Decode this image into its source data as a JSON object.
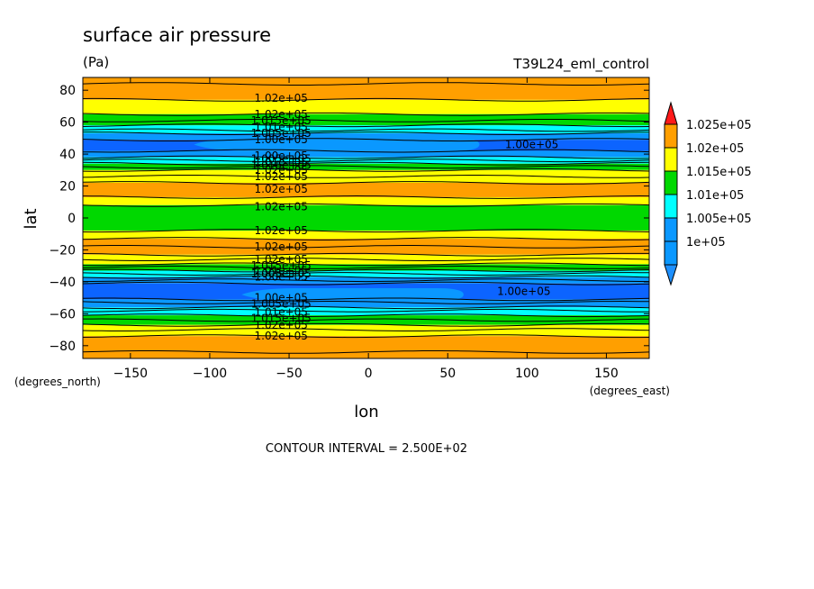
{
  "chart_data": {
    "type": "heatmap",
    "title": "surface air pressure",
    "units": "(Pa)",
    "run_label": "T39L24_eml_control",
    "xlabel": "lon",
    "ylabel": "lat",
    "x_unit": "(degrees_east)",
    "y_unit": "(degrees_north)",
    "xlim": [
      -180,
      177
    ],
    "ylim": [
      -88,
      88
    ],
    "x_ticks": [
      -150,
      -100,
      -50,
      0,
      50,
      100,
      150
    ],
    "y_ticks": [
      -80,
      -60,
      -40,
      -20,
      0,
      20,
      40,
      60,
      80
    ],
    "x_tick_labels": [
      "−150",
      "−100",
      "−50",
      "0",
      "50",
      "100",
      "150"
    ],
    "y_tick_labels": [
      "−80",
      "−60",
      "−40",
      "−20",
      "0",
      "20",
      "40",
      "60",
      "80"
    ],
    "contour_interval_text": "CONTOUR INTERVAL = 2.500E+02",
    "levels": [
      100000,
      100250,
      100500,
      100750,
      101000,
      101250,
      101500,
      101750,
      102000,
      102250,
      102500
    ],
    "legend": {
      "labels": [
        "1.025e+05",
        "1.02e+05",
        "1.015e+05",
        "1.01e+05",
        "1.005e+05",
        "1e+05"
      ],
      "colors": [
        "#ff9f00",
        "#ffff00",
        "#00d800",
        "#00ffff",
        "#0a98ff",
        "#0a98ff"
      ],
      "top_arrow_color": "#ff1a1a",
      "bottom_arrow_color": "#1e90ff"
    },
    "bands": [
      {
        "lat_min": 74,
        "lat_max": 88,
        "color": "#ff9f00"
      },
      {
        "lat_min": 65,
        "lat_max": 74,
        "color": "#ffff00"
      },
      {
        "lat_min": 58,
        "lat_max": 65,
        "color": "#00d800"
      },
      {
        "lat_min": 53,
        "lat_max": 58,
        "color": "#00ffff"
      },
      {
        "lat_min": 49,
        "lat_max": 53,
        "color": "#0a98ff"
      },
      {
        "lat_min": 42,
        "lat_max": 49,
        "color": "#0c64ff"
      },
      {
        "lat_min": 38,
        "lat_max": 42,
        "color": "#0a98ff"
      },
      {
        "lat_min": 34,
        "lat_max": 38,
        "color": "#00ffff"
      },
      {
        "lat_min": 30,
        "lat_max": 34,
        "color": "#00d800"
      },
      {
        "lat_min": 22,
        "lat_max": 30,
        "color": "#ffff00"
      },
      {
        "lat_min": 13,
        "lat_max": 22,
        "color": "#ff9f00"
      },
      {
        "lat_min": 8,
        "lat_max": 13,
        "color": "#ffff00"
      },
      {
        "lat_min": -8,
        "lat_max": 8,
        "color": "#00d800"
      },
      {
        "lat_min": -13,
        "lat_max": -8,
        "color": "#ffff00"
      },
      {
        "lat_min": -23,
        "lat_max": -13,
        "color": "#ff9f00"
      },
      {
        "lat_min": -29,
        "lat_max": -23,
        "color": "#ffff00"
      },
      {
        "lat_min": -33,
        "lat_max": -29,
        "color": "#00d800"
      },
      {
        "lat_min": -37,
        "lat_max": -33,
        "color": "#00ffff"
      },
      {
        "lat_min": -41,
        "lat_max": -37,
        "color": "#0a98ff"
      },
      {
        "lat_min": -51,
        "lat_max": -41,
        "color": "#0c64ff"
      },
      {
        "lat_min": -56,
        "lat_max": -51,
        "color": "#0a98ff"
      },
      {
        "lat_min": -61,
        "lat_max": -56,
        "color": "#00ffff"
      },
      {
        "lat_min": -67,
        "lat_max": -61,
        "color": "#00d800"
      },
      {
        "lat_min": -74,
        "lat_max": -67,
        "color": "#ffff00"
      },
      {
        "lat_min": -88,
        "lat_max": -74,
        "color": "#ff9f00"
      }
    ],
    "patches": [
      {
        "lon": [
          -110,
          70
        ],
        "lat": [
          42,
          50
        ],
        "color": "#0a98ff"
      },
      {
        "lon": [
          -80,
          60
        ],
        "lat": [
          -52,
          -44
        ],
        "color": "#0a98ff"
      }
    ],
    "contour_lats": [
      84,
      74,
      65,
      61,
      58,
      55,
      53,
      49,
      42,
      38,
      36,
      34,
      32,
      30,
      26,
      22,
      13,
      8,
      -8,
      -13,
      -18,
      -23,
      -26,
      -29,
      -31,
      -33,
      -35,
      -37,
      -39,
      -41,
      -51,
      -53,
      -56,
      -58,
      -61,
      -64,
      -67,
      -70,
      -74,
      -84
    ],
    "contour_labels": [
      {
        "text": "1.02e+05",
        "lon": -55,
        "lat": 75
      },
      {
        "text": "1.02e+05",
        "lon": -55,
        "lat": 65
      },
      {
        "text": "1.015e+05",
        "lon": -55,
        "lat": 61
      },
      {
        "text": "1.01e+05",
        "lon": -55,
        "lat": 57
      },
      {
        "text": "1.005e+05",
        "lon": -55,
        "lat": 53
      },
      {
        "text": "1.00e+05",
        "lon": -55,
        "lat": 49
      },
      {
        "text": "1.00e+05",
        "lon": 103,
        "lat": 46
      },
      {
        "text": "1.00e+05",
        "lon": -55,
        "lat": 39
      },
      {
        "text": "1.005e+05",
        "lon": -55,
        "lat": 37
      },
      {
        "text": "1.01e+05",
        "lon": -55,
        "lat": 35
      },
      {
        "text": "1.015e+05",
        "lon": -55,
        "lat": 33
      },
      {
        "text": "1.02e+05",
        "lon": -55,
        "lat": 30
      },
      {
        "text": "1.02e+05",
        "lon": -55,
        "lat": 26
      },
      {
        "text": "1.02e+05",
        "lon": -55,
        "lat": 18
      },
      {
        "text": "1.02e+05",
        "lon": -55,
        "lat": 7
      },
      {
        "text": "1.02e+05",
        "lon": -55,
        "lat": -8
      },
      {
        "text": "1.02e+05",
        "lon": -55,
        "lat": -18
      },
      {
        "text": "1.02e+05",
        "lon": -55,
        "lat": -26
      },
      {
        "text": "1.015e+05",
        "lon": -55,
        "lat": -30
      },
      {
        "text": "1.01e+05",
        "lon": -55,
        "lat": -33
      },
      {
        "text": "1.005e+05",
        "lon": -55,
        "lat": -35
      },
      {
        "text": "1.00e+05",
        "lon": -55,
        "lat": -37
      },
      {
        "text": "1.00e+05",
        "lon": -55,
        "lat": -50
      },
      {
        "text": "1.00e+05",
        "lon": 98,
        "lat": -46
      },
      {
        "text": "1.005e+05",
        "lon": -55,
        "lat": -54
      },
      {
        "text": "1.01e+05",
        "lon": -55,
        "lat": -59
      },
      {
        "text": "1.015e+05",
        "lon": -55,
        "lat": -63
      },
      {
        "text": "1.02e+05",
        "lon": -55,
        "lat": -67
      },
      {
        "text": "1.02e+05",
        "lon": -55,
        "lat": -74
      }
    ]
  }
}
